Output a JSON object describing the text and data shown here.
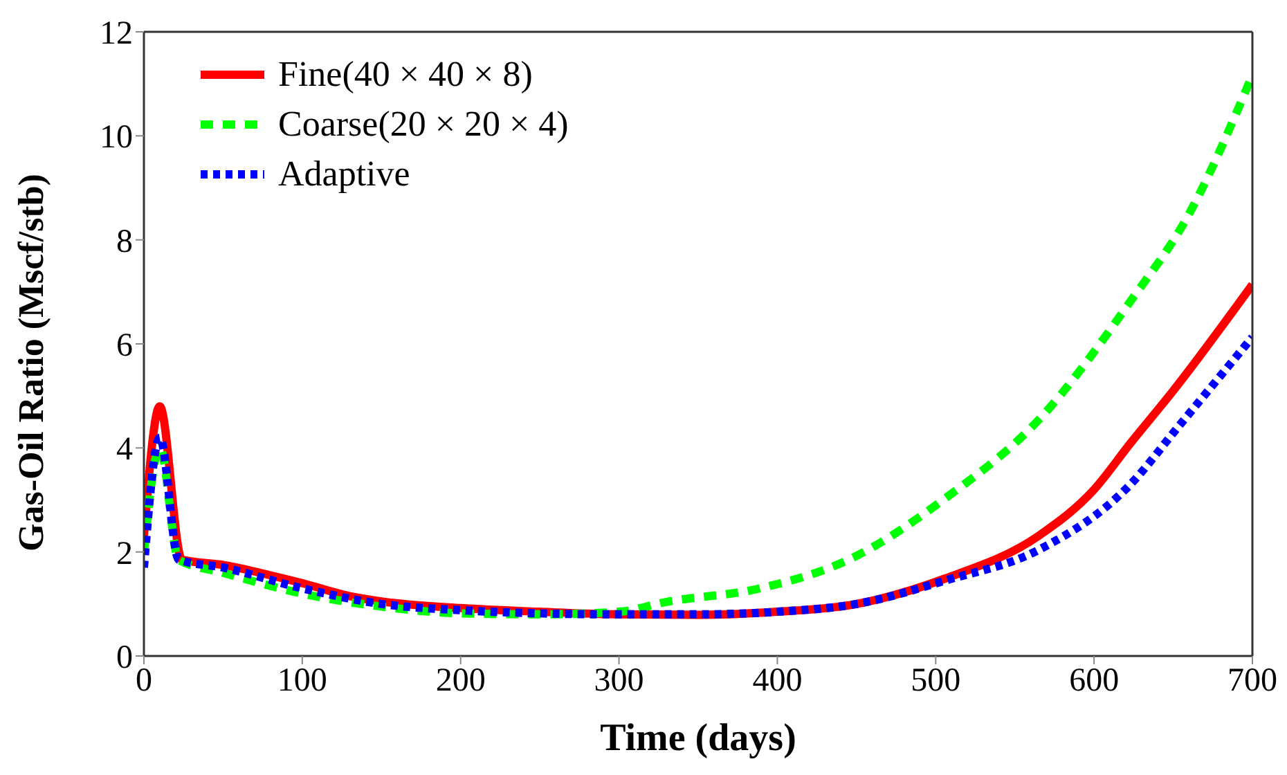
{
  "chart_data": {
    "type": "line",
    "xlabel": "Time (days)",
    "ylabel": "Gas-Oil Ratio (Mscf/stb)",
    "xlim": [
      0,
      700
    ],
    "xticks": [
      0,
      100,
      200,
      300,
      400,
      500,
      600,
      700
    ],
    "ylim": [
      0,
      12
    ],
    "yticks": [
      0,
      2,
      4,
      6,
      8,
      10,
      12
    ],
    "legend": "top left",
    "marker": "none",
    "series": [
      {
        "name": "Fine(40 × 40 × 8)",
        "color": "#ff0000",
        "line_style": "solid",
        "x": [
          0,
          10,
          24,
          50,
          80,
          100,
          130,
          150,
          200,
          250,
          300,
          350,
          400,
          450,
          506,
          565,
          600,
          623,
          650,
          700
        ],
        "values": [
          2.3,
          4.8,
          1.85,
          1.75,
          1.55,
          1.4,
          1.15,
          1.05,
          0.92,
          0.85,
          0.8,
          0.79,
          0.85,
          1.0,
          1.49,
          2.31,
          3.2,
          4.09,
          5.1,
          7.14
        ]
      },
      {
        "name": "Coarse(20 × 20 × 4)",
        "color": "#00ff00",
        "line_style": "dashed",
        "x": [
          0,
          10,
          22,
          50,
          100,
          150,
          200,
          250,
          300,
          330,
          389,
          447,
          506,
          565,
          623,
          660,
          700
        ],
        "values": [
          2.0,
          4.0,
          1.85,
          1.6,
          1.2,
          0.95,
          0.82,
          0.8,
          0.85,
          1.04,
          1.3,
          1.88,
          3.03,
          4.54,
          6.82,
          8.5,
          11.17
        ]
      },
      {
        "name": "Adaptive",
        "color": "#0000ff",
        "line_style": "dotted",
        "x": [
          0,
          10,
          22,
          50,
          100,
          150,
          200,
          250,
          300,
          350,
          400,
          450,
          506,
          565,
          623,
          653,
          700
        ],
        "values": [
          1.7,
          4.2,
          1.85,
          1.7,
          1.3,
          1.0,
          0.88,
          0.82,
          0.8,
          0.8,
          0.85,
          1.0,
          1.45,
          2.04,
          3.3,
          4.4,
          6.13
        ]
      }
    ]
  }
}
